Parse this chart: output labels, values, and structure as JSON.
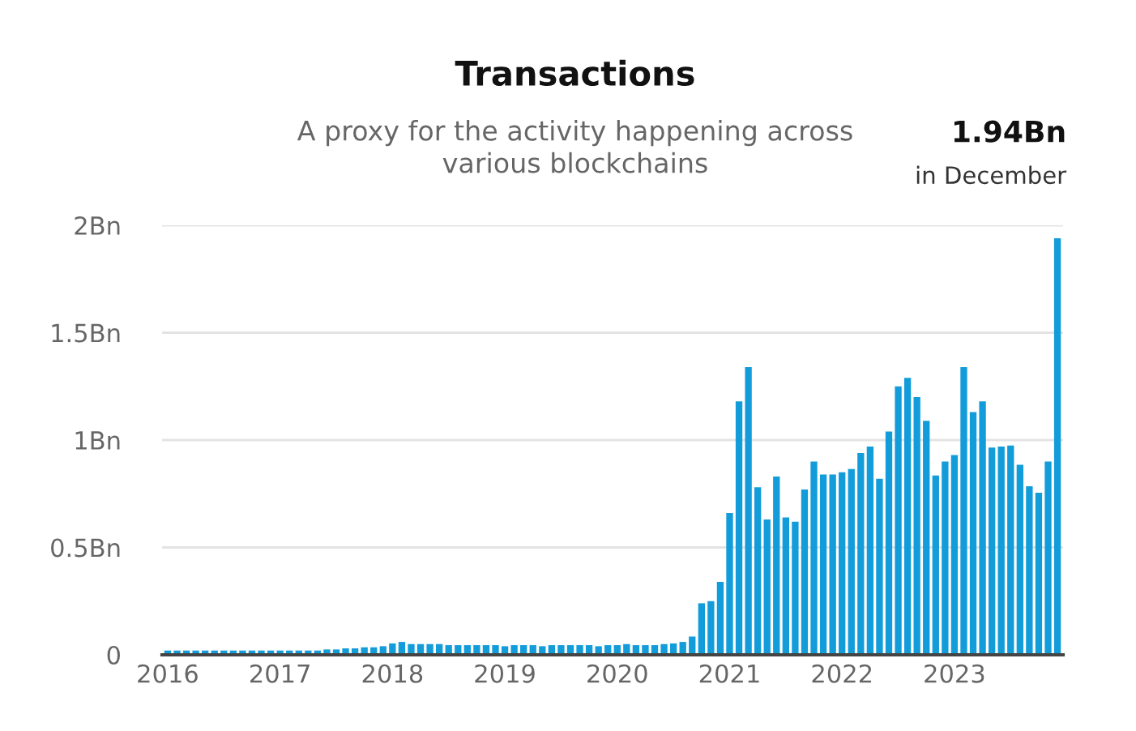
{
  "chart_data": {
    "type": "bar",
    "title": "Transactions",
    "subtitle": "A proxy for the activity happening across\nvarious blockchains",
    "annotations": [
      "1.94Bn",
      "in December"
    ],
    "categories": [
      "2016",
      null,
      null,
      null,
      null,
      null,
      null,
      null,
      null,
      null,
      null,
      null,
      "2017",
      null,
      null,
      null,
      null,
      null,
      null,
      null,
      null,
      null,
      null,
      null,
      "2018",
      null,
      null,
      null,
      null,
      null,
      null,
      null,
      null,
      null,
      null,
      null,
      "2019",
      null,
      null,
      null,
      null,
      null,
      null,
      null,
      null,
      null,
      null,
      null,
      "2020",
      null,
      null,
      null,
      null,
      null,
      null,
      null,
      null,
      null,
      null,
      null,
      "2021",
      null,
      null,
      null,
      null,
      null,
      null,
      null,
      null,
      null,
      null,
      null,
      "2022",
      null,
      null,
      null,
      null,
      null,
      null,
      null,
      null,
      null,
      null,
      null,
      "2023",
      null,
      null,
      null,
      null,
      null,
      null,
      null,
      null,
      null,
      null,
      null
    ],
    "values": [
      0.02,
      0.02,
      0.02,
      0.02,
      0.02,
      0.02,
      0.02,
      0.02,
      0.02,
      0.02,
      0.02,
      0.02,
      0.02,
      0.02,
      0.02,
      0.02,
      0.02,
      0.025,
      0.025,
      0.03,
      0.03,
      0.035,
      0.035,
      0.04,
      0.053,
      0.06,
      0.05,
      0.05,
      0.05,
      0.05,
      0.045,
      0.045,
      0.045,
      0.045,
      0.045,
      0.045,
      0.04,
      0.045,
      0.045,
      0.045,
      0.04,
      0.045,
      0.045,
      0.045,
      0.045,
      0.045,
      0.04,
      0.045,
      0.045,
      0.05,
      0.045,
      0.045,
      0.045,
      0.05,
      0.053,
      0.06,
      0.085,
      0.24,
      0.25,
      0.34,
      0.66,
      1.18,
      1.34,
      0.78,
      0.63,
      0.83,
      0.64,
      0.62,
      0.77,
      0.9,
      0.84,
      0.84,
      0.85,
      0.865,
      0.94,
      0.97,
      0.82,
      1.04,
      1.25,
      1.29,
      1.2,
      1.09,
      0.835,
      0.9,
      0.93,
      1.34,
      1.13,
      1.18,
      0.965,
      0.97,
      0.975,
      0.885,
      0.785,
      0.755,
      0.9,
      1.94
    ],
    "color": "#129cda",
    "ylim": [
      0,
      2
    ],
    "yticks": [
      0,
      {
        "value": 0.5,
        "label": "0.5Bn"
      },
      {
        "value": 1,
        "label": "1Bn"
      },
      {
        "value": 1.5,
        "label": "1.5Bn"
      },
      {
        "value": 2,
        "label": "2Bn"
      }
    ],
    "grid": "y",
    "legend": false
  }
}
